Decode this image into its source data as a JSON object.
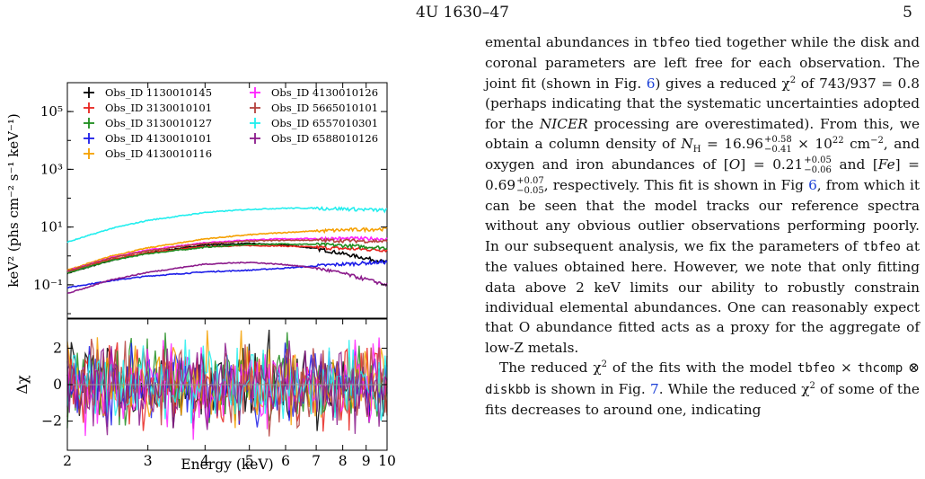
{
  "header": {
    "title": "4U 1630–47",
    "page_number": "5"
  },
  "colors": {
    "series": [
      "#000000",
      "#e8241f",
      "#1e8c1e",
      "#1c1ce8",
      "#f5a000",
      "#ff22ff",
      "#b5413d",
      "#22eeee",
      "#8b1a8b"
    ],
    "residual_line": "#999999"
  },
  "chart_data": [
    {
      "type": "line",
      "panel": "spectra",
      "ylabel": "keV² (phs cm⁻² s⁻¹ keV⁻¹)",
      "xlabel": "",
      "xscale": "log",
      "yscale": "log",
      "xlim": [
        2,
        10
      ],
      "ylim": [
        0.007,
        1000000
      ],
      "y_ticks": [
        {
          "value": 0.1,
          "label": "10⁻¹"
        },
        {
          "value": 10,
          "label": "10¹"
        },
        {
          "value": 1000,
          "label": "10³"
        },
        {
          "value": 100000,
          "label": "10⁵"
        }
      ],
      "x": [
        2,
        2.5,
        3,
        4,
        5,
        6,
        7,
        8,
        10
      ],
      "series": [
        {
          "name": "Obs_ID 1130010145",
          "values": [
            0.25,
            0.7,
            1.3,
            2.4,
            2.7,
            2.4,
            1.8,
            1.2,
            0.6
          ]
        },
        {
          "name": "Obs_ID 3130010101",
          "values": [
            0.28,
            0.75,
            1.3,
            2.1,
            2.3,
            2.2,
            2.0,
            1.8,
            1.6
          ]
        },
        {
          "name": "Obs_ID 3130010127",
          "values": [
            0.26,
            0.7,
            1.2,
            2.0,
            2.5,
            2.6,
            2.5,
            2.3,
            1.9
          ]
        },
        {
          "name": "Obs_ID 4130010101",
          "values": [
            0.08,
            0.14,
            0.2,
            0.28,
            0.32,
            0.38,
            0.45,
            0.52,
            0.62
          ]
        },
        {
          "name": "Obs_ID 4130010116",
          "values": [
            0.32,
            1.0,
            1.9,
            3.9,
            5.4,
            6.5,
            7.3,
            7.9,
            8.7
          ]
        },
        {
          "name": "Obs_ID 4130010126",
          "values": [
            0.3,
            0.9,
            1.6,
            2.9,
            3.6,
            3.9,
            4.0,
            4.0,
            3.9
          ]
        },
        {
          "name": "Obs_ID 5665010101",
          "values": [
            0.3,
            0.85,
            1.5,
            2.7,
            3.3,
            3.5,
            3.5,
            3.4,
            3.2
          ]
        },
        {
          "name": "Obs_ID 6557010301",
          "values": [
            3.0,
            9.0,
            17.0,
            32.0,
            41.0,
            45.0,
            45.0,
            43.0,
            38.0
          ]
        },
        {
          "name": "Obs_ID 6588010126",
          "values": [
            0.05,
            0.15,
            0.27,
            0.52,
            0.6,
            0.5,
            0.38,
            0.25,
            0.1
          ]
        }
      ]
    },
    {
      "type": "scatter",
      "panel": "residuals",
      "ylabel": "Δχ",
      "xlabel": "Energy (keV)",
      "xscale": "log",
      "xlim": [
        2,
        10
      ],
      "ylim": [
        -3.6,
        3.6
      ],
      "y_ticks": [
        {
          "value": 2,
          "label": "2"
        },
        {
          "value": 0,
          "label": "0"
        },
        {
          "value": -2,
          "label": "−2"
        }
      ],
      "x_ticks": [
        {
          "value": 2,
          "label": "2"
        },
        {
          "value": 3,
          "label": "3"
        },
        {
          "value": 4,
          "label": "4"
        },
        {
          "value": 5,
          "label": "5"
        },
        {
          "value": 6,
          "label": "6"
        },
        {
          "value": 7,
          "label": "7"
        },
        {
          "value": 8,
          "label": "8"
        },
        {
          "value": 9,
          "label": "9"
        },
        {
          "value": 10,
          "label": "10"
        }
      ]
    }
  ],
  "text": {
    "p1_a": "emental abundances in ",
    "p1_code1": "tbfeo",
    "p1_b": " tied together while the disk and coronal parameters are left free for each observation. The joint fit (shown in Fig. ",
    "p1_ref1": "6",
    "p1_c": ") gives a reduced χ",
    "p1_sq1": "2",
    "p1_d": " of 743/937 = 0.8 (perhaps indicating that the systematic uncertainties adopted for the ",
    "p1_nicer": "NICER",
    "p1_e": " processing are overestimated). From this, we obtain a column density of ",
    "p1_nh": "N",
    "p1_nh_sub": "H",
    "p1_f": " = 16.96",
    "p1_nh_up": "+0.58",
    "p1_nh_lo": "−0.41",
    "p1_g": " × 10",
    "p1_exp22": "22",
    "p1_h": " cm",
    "p1_expm2": "−2",
    "p1_i": ", and oxygen and iron abundances of [",
    "p1_O": "O",
    "p1_j": "] = 0.21",
    "p1_o_up": "+0.05",
    "p1_o_lo": "−0.06",
    "p1_k": " and [",
    "p1_Fe": "Fe",
    "p1_l": "] = 0.69",
    "p1_fe_up": "+0.07",
    "p1_fe_lo": "−0.05",
    "p1_m": ", respectively. This fit is shown in Fig ",
    "p1_ref2": "6",
    "p1_n": ", from which it can be seen that the model tracks our reference spectra without any obvious outlier observations performing poorly. In our subsequent analysis, we fix the parameters of ",
    "p1_code2": "tbfeo",
    "p1_o": " at the values obtained here. However, we note that only fitting data above 2 keV limits our ability to robustly constrain individual elemental abundances. One can reasonably expect that O abundance fitted acts as a proxy for the aggregate of low-Z metals.",
    "p2_a": "The reduced χ",
    "p2_sq": "2",
    "p2_b": " of the fits with the model ",
    "p2_code1": "tbfeo",
    "p2_c": " × ",
    "p2_code2": "thcomp",
    "p2_d": " ⊗ ",
    "p2_code3": "diskbb",
    "p2_e": " is shown in Fig. ",
    "p2_ref": "7",
    "p2_f": ". While the reduced",
    "p2_g": "χ",
    "p2_sq2": "2",
    "p2_h": " of some of the fits decreases to around one, indicating"
  }
}
